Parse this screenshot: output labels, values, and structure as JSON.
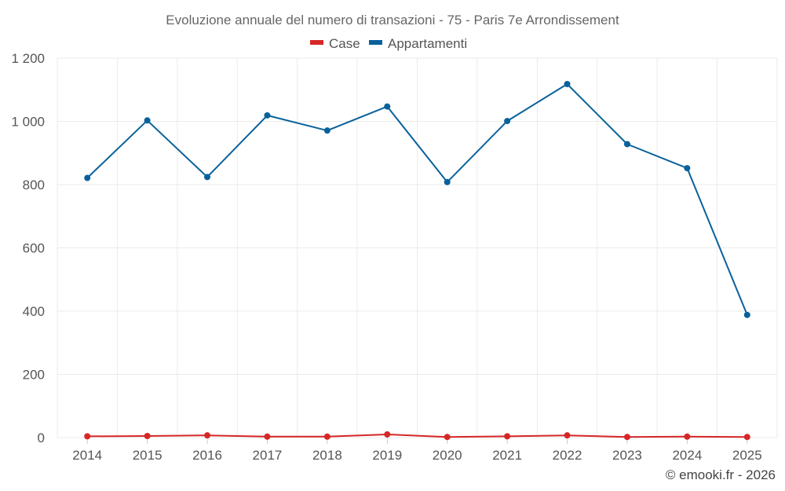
{
  "chart_data": {
    "type": "line",
    "title": "Evoluzione annuale del numero di transazioni - 75 - Paris 7e Arrondissement",
    "xlabel": "",
    "ylabel": "",
    "categories": [
      "2014",
      "2015",
      "2016",
      "2017",
      "2018",
      "2019",
      "2020",
      "2021",
      "2022",
      "2023",
      "2024",
      "2025"
    ],
    "ylim": [
      0,
      1200
    ],
    "yticks": [
      0,
      200,
      400,
      600,
      800,
      1000,
      1200
    ],
    "ytick_labels": [
      "0",
      "200",
      "400",
      "600",
      "800",
      "1 000",
      "1 200"
    ],
    "grid": true,
    "legend_position": "top-center",
    "series": [
      {
        "name": "Case",
        "color": "#d62728",
        "values": [
          4,
          5,
          7,
          3,
          3,
          10,
          2,
          4,
          7,
          2,
          3,
          2
        ]
      },
      {
        "name": "Appartamenti",
        "color": "#08619b",
        "values": [
          821,
          1003,
          824,
          1019,
          971,
          1047,
          808,
          1001,
          1118,
          928,
          852,
          388
        ]
      }
    ]
  },
  "credit": "© emooki.fr - 2026"
}
